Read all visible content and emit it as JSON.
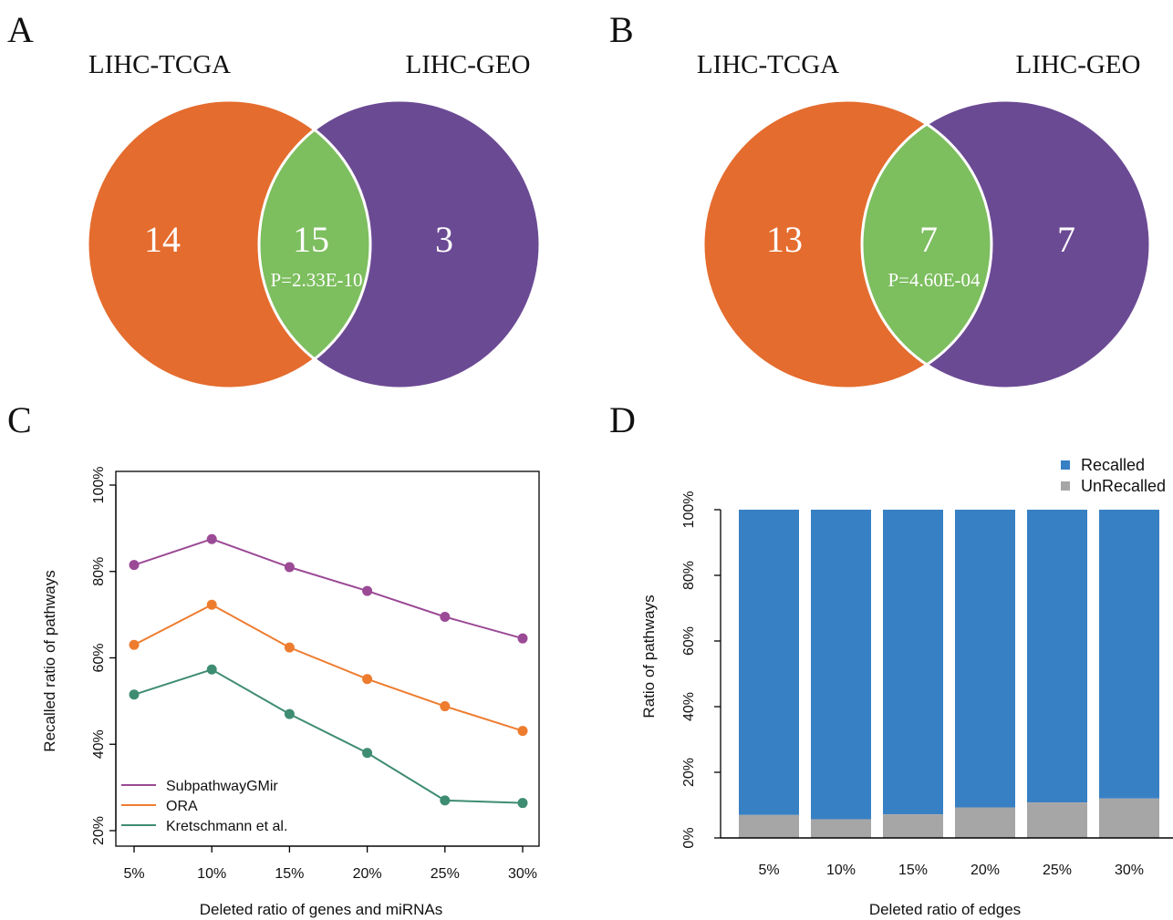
{
  "panels": {
    "a": "A",
    "b": "B",
    "c": "C",
    "d": "D"
  },
  "venn": [
    {
      "left_label": "LIHC-TCGA",
      "right_label": "LIHC-GEO",
      "left_only": "14",
      "overlap": "15",
      "right_only": "3",
      "p_value": "P=2.33E-10"
    },
    {
      "left_label": "LIHC-TCGA",
      "right_label": "LIHC-GEO",
      "left_only": "13",
      "overlap": "7",
      "right_only": "7",
      "p_value": "P=4.60E-04"
    }
  ],
  "colors": {
    "venn_left": "#E46C2E",
    "venn_right": "#6B4A94",
    "venn_overlap": "#7DBE5F",
    "subpathway": "#9B4A96",
    "ora": "#EE7C2F",
    "kretschmann": "#3E8C72",
    "recalled": "#3880C4",
    "unrecalled": "#A6A6A6"
  },
  "chart_data": [
    {
      "type": "line",
      "x": [
        "5%",
        "10%",
        "15%",
        "20%",
        "25%",
        "30%"
      ],
      "xlabel": "Deleted ratio of genes and miRNAs",
      "ylabel": "Recalled ratio of pathways",
      "yticks": [
        "20%",
        "40%",
        "60%",
        "80%",
        "100%"
      ],
      "ylim": [
        20,
        100
      ],
      "series": [
        {
          "name": "SubpathwayGMir",
          "values": [
            81.5,
            87.5,
            81.0,
            75.5,
            69.5,
            64.5
          ]
        },
        {
          "name": "ORA",
          "values": [
            63.0,
            72.3,
            62.4,
            55.1,
            48.8,
            43.1
          ]
        },
        {
          "name": "Kretschmann et al.",
          "values": [
            51.5,
            57.3,
            47.0,
            38.0,
            27.0,
            26.4
          ]
        }
      ],
      "legend_position": "bottom-left"
    },
    {
      "type": "bar",
      "stacked": true,
      "categories": [
        "5%",
        "10%",
        "15%",
        "20%",
        "25%",
        "30%"
      ],
      "xlabel": "Deleted ratio of edges",
      "ylabel": "Ratio of pathways",
      "yticks": [
        "0%",
        "20%",
        "40%",
        "60%",
        "80%",
        "100%"
      ],
      "ylim": [
        0,
        100
      ],
      "series": [
        {
          "name": "Recalled",
          "values": [
            93.0,
            94.3,
            92.8,
            90.7,
            89.2,
            88.0
          ]
        },
        {
          "name": "UnRecalled",
          "values": [
            7.0,
            5.7,
            7.2,
            9.3,
            10.8,
            12.0
          ]
        }
      ],
      "legend_position": "top-right"
    }
  ]
}
